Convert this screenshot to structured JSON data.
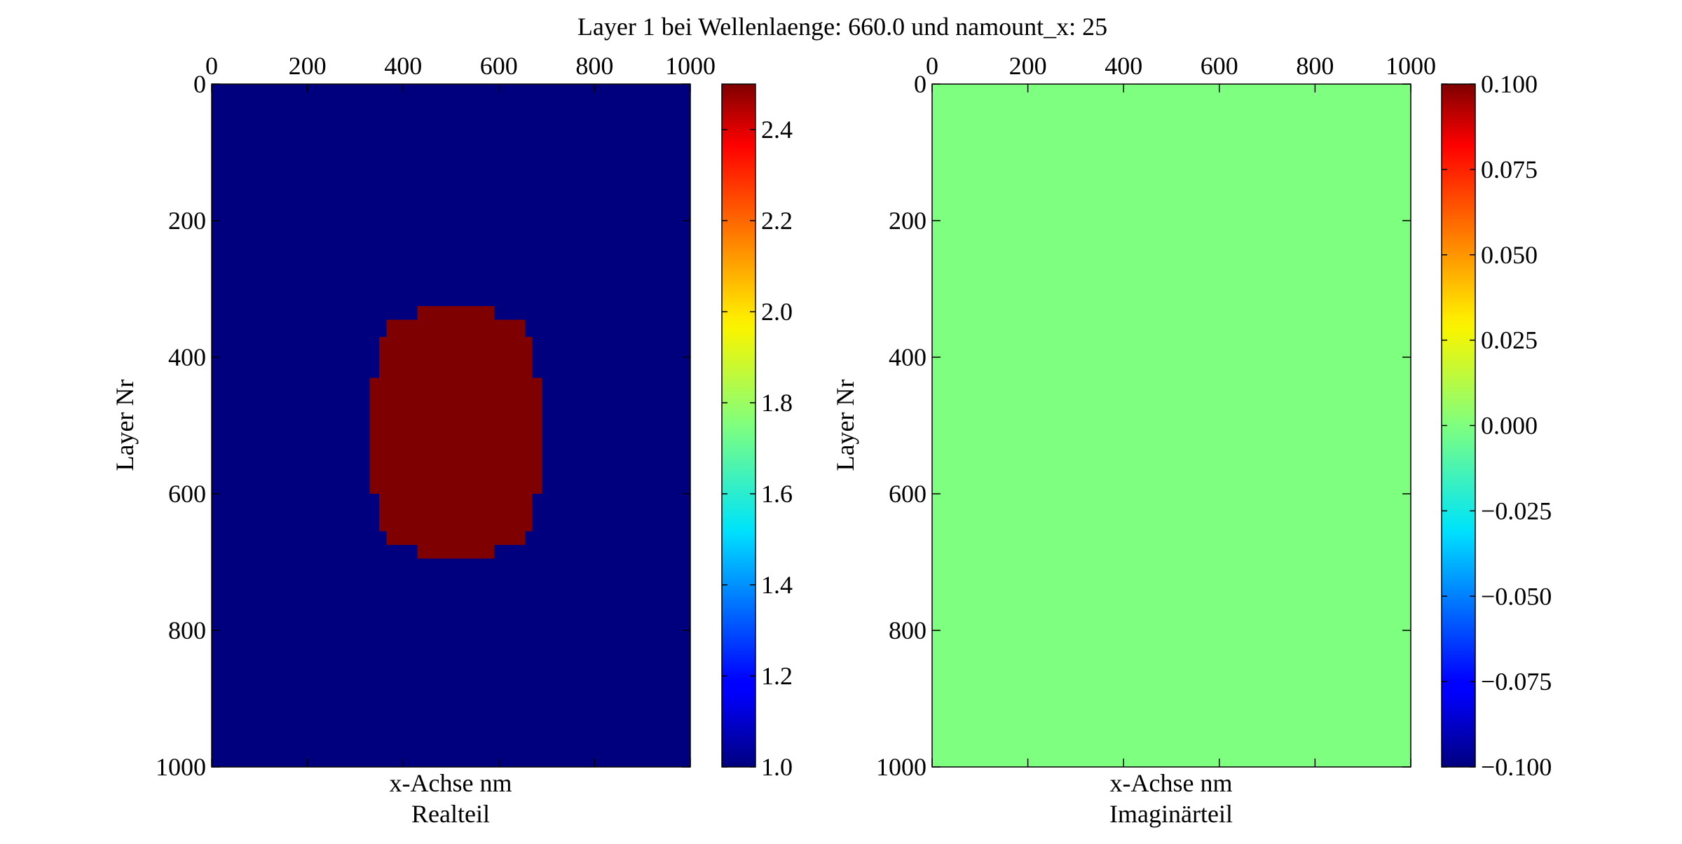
{
  "figure": {
    "title": "Layer 1 bei Wellenlaenge: 660.0 und namount_x: 25",
    "background": "#ffffff"
  },
  "chart_data": [
    {
      "type": "heatmap",
      "subtitle": "Realteil",
      "xlabel": "x-Achse nm",
      "ylabel": "Layer Nr",
      "xlim": [
        0,
        1000
      ],
      "ylim": [
        1000,
        0
      ],
      "xticks": [
        0,
        200,
        400,
        600,
        800,
        1000
      ],
      "yticks": [
        0,
        200,
        400,
        600,
        800,
        1000
      ],
      "x_axis_position": "top",
      "background_value": 1.0,
      "background_color": "#00007f",
      "region": {
        "value": 2.5,
        "color": "#7f0000",
        "shape": "ellipse",
        "center_x": 520,
        "center_y": 515,
        "rows": [
          {
            "y0": 325,
            "y1": 345,
            "x0": 430,
            "x1": 590
          },
          {
            "y0": 345,
            "y1": 370,
            "x0": 365,
            "x1": 655
          },
          {
            "y0": 370,
            "y1": 430,
            "x0": 350,
            "x1": 670
          },
          {
            "y0": 430,
            "y1": 600,
            "x0": 330,
            "x1": 690
          },
          {
            "y0": 600,
            "y1": 655,
            "x0": 350,
            "x1": 670
          },
          {
            "y0": 655,
            "y1": 675,
            "x0": 365,
            "x1": 655
          },
          {
            "y0": 675,
            "y1": 695,
            "x0": 430,
            "x1": 590
          }
        ]
      },
      "colorbar": {
        "min": 1.0,
        "max": 2.5,
        "ticks": [
          1.0,
          1.2,
          1.4,
          1.6,
          1.8,
          2.0,
          2.2,
          2.4
        ],
        "tick_labels": [
          "1.0",
          "1.2",
          "1.4",
          "1.6",
          "1.8",
          "2.0",
          "2.2",
          "2.4"
        ],
        "colormap": "jet"
      }
    },
    {
      "type": "heatmap",
      "subtitle": "Imaginärteil",
      "xlabel": "x-Achse nm",
      "ylabel": "Layer Nr",
      "xlim": [
        0,
        1000
      ],
      "ylim": [
        1000,
        0
      ],
      "xticks": [
        0,
        200,
        400,
        600,
        800,
        1000
      ],
      "yticks": [
        0,
        200,
        400,
        600,
        800,
        1000
      ],
      "x_axis_position": "top",
      "background_value": 0.0,
      "background_color": "#7fff7f",
      "colorbar": {
        "min": -0.1,
        "max": 0.1,
        "ticks": [
          -0.1,
          -0.075,
          -0.05,
          -0.025,
          0.0,
          0.025,
          0.05,
          0.075,
          0.1
        ],
        "tick_labels": [
          "−0.100",
          "−0.075",
          "−0.050",
          "−0.025",
          "0.000",
          "0.025",
          "0.050",
          "0.075",
          "0.100"
        ],
        "colormap": "jet"
      }
    }
  ]
}
